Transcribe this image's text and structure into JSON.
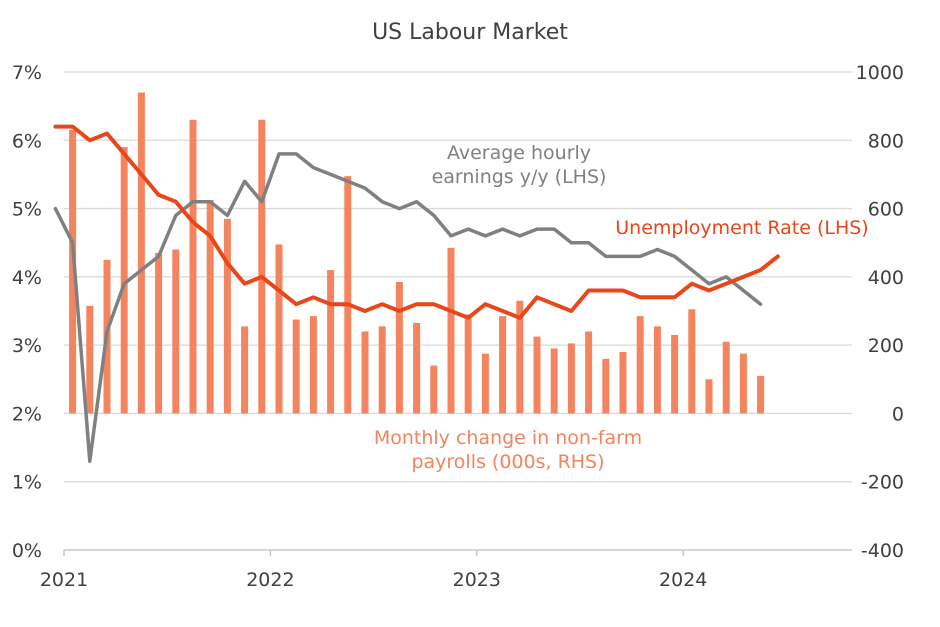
{
  "chart_data": {
    "type": "bar+line",
    "title": "US Labour Market",
    "x_tick_labels": [
      "2021",
      "2022",
      "2023",
      "2024"
    ],
    "y_left": {
      "min": 0,
      "max": 7,
      "step": 1,
      "unit": "%",
      "tick_labels": [
        "0%",
        "1%",
        "2%",
        "3%",
        "4%",
        "5%",
        "6%",
        "7%"
      ]
    },
    "y_right": {
      "min": -400,
      "max": 1000,
      "step": 200,
      "tick_labels": [
        "-400",
        "-200",
        "0",
        "200",
        "400",
        "600",
        "800",
        "1000"
      ]
    },
    "x_range": [
      "2021-01",
      "2024-12"
    ],
    "grid": true,
    "annotations": {
      "earnings_line1": "Average hourly",
      "earnings_line2": "earnings y/y (LHS)",
      "unemployment": "Unemployment Rate (LHS)",
      "payrolls_line1": "Monthly change in non-farm",
      "payrolls_line2": "payrolls (000s, RHS)"
    },
    "colors": {
      "payrolls": "#F4845F",
      "unemployment": "#E8471C",
      "earnings": "#808080",
      "grid": "#D9D9D9",
      "text": "#404040"
    },
    "months": [
      "2021-01",
      "2021-02",
      "2021-03",
      "2021-04",
      "2021-05",
      "2021-06",
      "2021-07",
      "2021-08",
      "2021-09",
      "2021-10",
      "2021-11",
      "2021-12",
      "2022-01",
      "2022-02",
      "2022-03",
      "2022-04",
      "2022-05",
      "2022-06",
      "2022-07",
      "2022-08",
      "2022-09",
      "2022-10",
      "2022-11",
      "2022-12",
      "2023-01",
      "2023-02",
      "2023-03",
      "2023-04",
      "2023-05",
      "2023-06",
      "2023-07",
      "2023-08",
      "2023-09",
      "2023-10",
      "2023-11",
      "2023-12",
      "2024-01",
      "2024-02",
      "2024-03",
      "2024-04",
      "2024-05"
    ],
    "series": [
      {
        "name": "Monthly change in non-farm payrolls (000s, RHS)",
        "type": "bar",
        "axis": "right",
        "values": [
          830,
          315,
          450,
          780,
          940,
          470,
          480,
          860,
          625,
          570,
          255,
          860,
          495,
          275,
          285,
          420,
          695,
          240,
          255,
          385,
          265,
          140,
          485,
          290,
          175,
          285,
          330,
          225,
          190,
          205,
          240,
          160,
          180,
          285,
          255,
          230,
          305,
          100,
          210,
          175,
          110
        ]
      },
      {
        "name": "Unemployment Rate (LHS)",
        "type": "line",
        "axis": "left",
        "values": [
          6.2,
          6.2,
          6.0,
          6.1,
          5.8,
          5.5,
          5.2,
          5.1,
          4.8,
          4.6,
          4.2,
          3.9,
          4.0,
          3.8,
          3.6,
          3.7,
          3.6,
          3.6,
          3.5,
          3.6,
          3.5,
          3.6,
          3.6,
          3.5,
          3.4,
          3.6,
          3.5,
          3.4,
          3.7,
          3.6,
          3.5,
          3.8,
          3.8,
          3.8,
          3.7,
          3.7,
          3.7,
          3.9,
          3.8,
          3.9,
          4.0,
          4.1,
          4.3
        ],
        "months": [
          "2020-12",
          "2021-01",
          "2021-02",
          "2021-03",
          "2021-04",
          "2021-05",
          "2021-06",
          "2021-07",
          "2021-08",
          "2021-09",
          "2021-10",
          "2021-11",
          "2021-12",
          "2022-01",
          "2022-02",
          "2022-03",
          "2022-04",
          "2022-05",
          "2022-06",
          "2022-07",
          "2022-08",
          "2022-09",
          "2022-10",
          "2022-11",
          "2022-12",
          "2023-01",
          "2023-02",
          "2023-03",
          "2023-04",
          "2023-05",
          "2023-06",
          "2023-07",
          "2023-08",
          "2023-09",
          "2023-10",
          "2023-11",
          "2023-12",
          "2024-01",
          "2024-02",
          "2024-03",
          "2024-04",
          "2024-05",
          "2024-06"
        ]
      },
      {
        "name": "Average hourly earnings y/y (LHS)",
        "type": "line",
        "axis": "left",
        "values": [
          5.0,
          4.5,
          1.3,
          3.2,
          3.9,
          4.1,
          4.3,
          4.9,
          5.1,
          5.1,
          4.9,
          5.4,
          5.1,
          5.8,
          5.8,
          5.6,
          5.5,
          5.4,
          5.3,
          5.1,
          5.0,
          5.1,
          4.9,
          4.6,
          4.7,
          4.6,
          4.7,
          4.6,
          4.7,
          4.7,
          4.5,
          4.5,
          4.3,
          4.3,
          4.3,
          4.4,
          4.3,
          4.1,
          3.9,
          4.0,
          3.8,
          3.6
        ],
        "months": [
          "2020-12",
          "2021-01",
          "2021-02",
          "2021-03",
          "2021-04",
          "2021-05",
          "2021-06",
          "2021-07",
          "2021-08",
          "2021-09",
          "2021-10",
          "2021-11",
          "2021-12",
          "2022-01",
          "2022-02",
          "2022-03",
          "2022-04",
          "2022-05",
          "2022-06",
          "2022-07",
          "2022-08",
          "2022-09",
          "2022-10",
          "2022-11",
          "2022-12",
          "2023-01",
          "2023-02",
          "2023-03",
          "2023-04",
          "2023-05",
          "2023-06",
          "2023-07",
          "2023-08",
          "2023-09",
          "2023-10",
          "2023-11",
          "2023-12",
          "2024-01",
          "2024-02",
          "2024-03",
          "2024-04",
          "2024-05"
        ]
      }
    ]
  }
}
